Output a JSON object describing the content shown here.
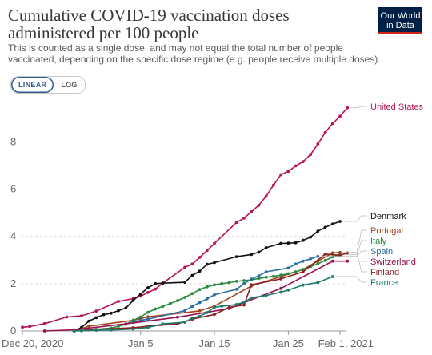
{
  "header": {
    "title": "Cumulative COVID-19 vaccination doses administered per 100 people",
    "subtitle": "This is counted as a single dose, and may not equal the total number of people vaccinated, depending on the specific dose regime (e.g. people receive multiple doses).",
    "logo_line1": "Our World",
    "logo_line2": "in Data"
  },
  "controls": {
    "linear_label": "LINEAR",
    "log_label": "LOG",
    "selected": "linear"
  },
  "colors": {
    "United States": "#b5145b",
    "Denmark": "#111111",
    "Portugal": "#a2431e",
    "Italy": "#2a8a3d",
    "Spain": "#2c6ea0",
    "Switzerland": "#970f50",
    "Finland": "#8c1f1f",
    "France": "#1b7a6c"
  },
  "chart_data": {
    "type": "line",
    "title": "Cumulative COVID-19 vaccination doses administered per 100 people",
    "x_ticks": [
      {
        "date": "2020-12-20",
        "label": "Dec 20, 2020"
      },
      {
        "date": "2021-01-05",
        "label": "Jan 5"
      },
      {
        "date": "2021-01-15",
        "label": "Jan 15"
      },
      {
        "date": "2021-01-25",
        "label": "Jan 25"
      },
      {
        "date": "2021-02-01",
        "label": "Feb 1, 2021"
      }
    ],
    "xlim": [
      "2020-12-20",
      "2021-02-01"
    ],
    "y_ticks": [
      0,
      2,
      4,
      6,
      8
    ],
    "ylim": [
      0,
      9.6
    ],
    "grid": "horizontal dashed",
    "legend": "right, labels at line ends",
    "series": [
      {
        "name": "United States",
        "data": [
          [
            "2020-12-20",
            0.16
          ],
          [
            "2020-12-21",
            0.19
          ],
          [
            "2020-12-23",
            0.31
          ],
          [
            "2020-12-26",
            0.59
          ],
          [
            "2020-12-28",
            0.64
          ],
          [
            "2020-12-30",
            0.84
          ],
          [
            "2021-01-02",
            1.25
          ],
          [
            "2021-01-04",
            1.37
          ],
          [
            "2021-01-05",
            1.47
          ],
          [
            "2021-01-06",
            1.63
          ],
          [
            "2021-01-07",
            1.77
          ],
          [
            "2021-01-08",
            2.02
          ],
          [
            "2021-01-11",
            2.69
          ],
          [
            "2021-01-12",
            2.83
          ],
          [
            "2021-01-13",
            3.11
          ],
          [
            "2021-01-14",
            3.4
          ],
          [
            "2021-01-15",
            3.7
          ],
          [
            "2021-01-18",
            4.59
          ],
          [
            "2021-01-19",
            4.77
          ],
          [
            "2021-01-20",
            5.04
          ],
          [
            "2021-01-21",
            5.31
          ],
          [
            "2021-01-22",
            5.7
          ],
          [
            "2021-01-23",
            6.17
          ],
          [
            "2021-01-24",
            6.61
          ],
          [
            "2021-01-25",
            6.75
          ],
          [
            "2021-01-26",
            6.98
          ],
          [
            "2021-01-27",
            7.16
          ],
          [
            "2021-01-28",
            7.46
          ],
          [
            "2021-01-29",
            7.91
          ],
          [
            "2021-01-30",
            8.39
          ],
          [
            "2021-01-31",
            8.78
          ],
          [
            "2021-02-01",
            9.08
          ],
          [
            "2021-02-02",
            9.44
          ]
        ]
      },
      {
        "name": "Denmark",
        "data": [
          [
            "2020-12-27",
            0.0
          ],
          [
            "2020-12-28",
            0.15
          ],
          [
            "2020-12-29",
            0.42
          ],
          [
            "2020-12-30",
            0.56
          ],
          [
            "2020-12-31",
            0.69
          ],
          [
            "2021-01-01",
            0.75
          ],
          [
            "2021-01-02",
            0.86
          ],
          [
            "2021-01-03",
            0.97
          ],
          [
            "2021-01-04",
            1.29
          ],
          [
            "2021-01-05",
            1.56
          ],
          [
            "2021-01-06",
            1.83
          ],
          [
            "2021-01-07",
            2.0
          ],
          [
            "2021-01-08",
            2.02
          ],
          [
            "2021-01-11",
            2.06
          ],
          [
            "2021-01-12",
            2.35
          ],
          [
            "2021-01-13",
            2.53
          ],
          [
            "2021-01-14",
            2.82
          ],
          [
            "2021-01-15",
            2.89
          ],
          [
            "2021-01-18",
            3.14
          ],
          [
            "2021-01-20",
            3.23
          ],
          [
            "2021-01-21",
            3.33
          ],
          [
            "2021-01-22",
            3.52
          ],
          [
            "2021-01-24",
            3.7
          ],
          [
            "2021-01-25",
            3.71
          ],
          [
            "2021-01-26",
            3.73
          ],
          [
            "2021-01-27",
            3.83
          ],
          [
            "2021-01-28",
            3.97
          ],
          [
            "2021-01-29",
            4.22
          ],
          [
            "2021-01-30",
            4.38
          ],
          [
            "2021-01-31",
            4.52
          ],
          [
            "2021-02-01",
            4.63
          ]
        ]
      },
      {
        "name": "Portugal",
        "data": [
          [
            "2020-12-27",
            0.0
          ],
          [
            "2020-12-29",
            0.2
          ],
          [
            "2021-01-04",
            0.45
          ],
          [
            "2021-01-06",
            0.6
          ],
          [
            "2021-01-13",
            0.85
          ],
          [
            "2021-01-15",
            1.05
          ],
          [
            "2021-01-20",
            1.9
          ],
          [
            "2021-01-27",
            2.6
          ],
          [
            "2021-01-29",
            2.95
          ],
          [
            "2021-01-31",
            3.3
          ],
          [
            "2021-02-01",
            3.32
          ]
        ]
      },
      {
        "name": "Italy",
        "data": [
          [
            "2020-12-27",
            0.0
          ],
          [
            "2020-12-30",
            0.07
          ],
          [
            "2021-01-01",
            0.12
          ],
          [
            "2021-01-02",
            0.2
          ],
          [
            "2021-01-03",
            0.28
          ],
          [
            "2021-01-04",
            0.45
          ],
          [
            "2021-01-05",
            0.59
          ],
          [
            "2021-01-06",
            0.79
          ],
          [
            "2021-01-07",
            0.93
          ],
          [
            "2021-01-08",
            1.04
          ],
          [
            "2021-01-09",
            1.16
          ],
          [
            "2021-01-10",
            1.28
          ],
          [
            "2021-01-11",
            1.42
          ],
          [
            "2021-01-12",
            1.58
          ],
          [
            "2021-01-13",
            1.75
          ],
          [
            "2021-01-14",
            1.87
          ],
          [
            "2021-01-15",
            1.95
          ],
          [
            "2021-01-16",
            2.0
          ],
          [
            "2021-01-17",
            2.04
          ],
          [
            "2021-01-18",
            2.1
          ],
          [
            "2021-01-19",
            2.13
          ],
          [
            "2021-01-20",
            2.16
          ],
          [
            "2021-01-21",
            2.22
          ],
          [
            "2021-01-22",
            2.27
          ],
          [
            "2021-01-23",
            2.31
          ],
          [
            "2021-01-24",
            2.36
          ],
          [
            "2021-01-25",
            2.42
          ],
          [
            "2021-01-26",
            2.5
          ],
          [
            "2021-01-27",
            2.6
          ],
          [
            "2021-01-28",
            2.72
          ],
          [
            "2021-01-29",
            2.84
          ],
          [
            "2021-01-30",
            2.98
          ],
          [
            "2021-01-31",
            3.13
          ],
          [
            "2021-02-01",
            3.22
          ]
        ]
      },
      {
        "name": "Spain",
        "data": [
          [
            "2021-01-04",
            0.37
          ],
          [
            "2021-01-05",
            0.45
          ],
          [
            "2021-01-06",
            0.5
          ],
          [
            "2021-01-11",
            0.86
          ],
          [
            "2021-01-12",
            1.04
          ],
          [
            "2021-01-13",
            1.2
          ],
          [
            "2021-01-14",
            1.36
          ],
          [
            "2021-01-15",
            1.53
          ],
          [
            "2021-01-18",
            1.76
          ],
          [
            "2021-01-19",
            2.0
          ],
          [
            "2021-01-20",
            2.19
          ],
          [
            "2021-01-21",
            2.33
          ],
          [
            "2021-01-22",
            2.5
          ],
          [
            "2021-01-25",
            2.66
          ],
          [
            "2021-01-26",
            2.83
          ],
          [
            "2021-01-27",
            2.95
          ],
          [
            "2021-01-28",
            3.05
          ],
          [
            "2021-01-29",
            3.15
          ]
        ]
      },
      {
        "name": "Switzerland",
        "data": [
          [
            "2020-12-23",
            0.0
          ],
          [
            "2020-12-27",
            0.05
          ],
          [
            "2021-01-03",
            0.3
          ],
          [
            "2021-01-10",
            0.58
          ],
          [
            "2021-01-17",
            0.95
          ],
          [
            "2021-01-19",
            1.2
          ],
          [
            "2021-01-24",
            1.8
          ],
          [
            "2021-01-31",
            2.95
          ],
          [
            "2021-02-02",
            2.95
          ]
        ]
      },
      {
        "name": "Finland",
        "data": [
          [
            "2020-12-27",
            0.0
          ],
          [
            "2020-12-29",
            0.05
          ],
          [
            "2021-01-04",
            0.14
          ],
          [
            "2021-01-06",
            0.2
          ],
          [
            "2021-01-10",
            0.3
          ],
          [
            "2021-01-12",
            0.5
          ],
          [
            "2021-01-15",
            0.7
          ],
          [
            "2021-01-17",
            1.0
          ],
          [
            "2021-01-19",
            1.1
          ],
          [
            "2021-01-20",
            1.95
          ],
          [
            "2021-01-24",
            2.2
          ],
          [
            "2021-01-27",
            2.5
          ],
          [
            "2021-01-30",
            3.25
          ],
          [
            "2021-02-01",
            3.2
          ],
          [
            "2021-02-02",
            3.3
          ]
        ]
      },
      {
        "name": "France",
        "data": [
          [
            "2020-12-27",
            0.0
          ],
          [
            "2020-12-28",
            0.01
          ],
          [
            "2020-12-30",
            0.03
          ],
          [
            "2021-01-01",
            0.04
          ],
          [
            "2021-01-04",
            0.08
          ],
          [
            "2021-01-06",
            0.15
          ],
          [
            "2021-01-08",
            0.3
          ],
          [
            "2021-01-11",
            0.37
          ],
          [
            "2021-01-12",
            0.55
          ],
          [
            "2021-01-13",
            0.62
          ],
          [
            "2021-01-14",
            0.78
          ],
          [
            "2021-01-15",
            1.0
          ],
          [
            "2021-01-16",
            1.05
          ],
          [
            "2021-01-18",
            1.12
          ],
          [
            "2021-01-19",
            1.22
          ],
          [
            "2021-01-20",
            1.4
          ],
          [
            "2021-01-22",
            1.5
          ],
          [
            "2021-01-24",
            1.64
          ],
          [
            "2021-01-25",
            1.73
          ],
          [
            "2021-01-27",
            1.94
          ],
          [
            "2021-01-29",
            2.05
          ],
          [
            "2021-01-31",
            2.3
          ]
        ]
      }
    ]
  }
}
